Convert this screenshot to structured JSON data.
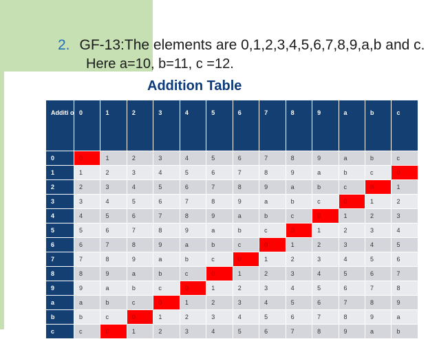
{
  "slide": {
    "point_number": "2.",
    "point_text": "GF-13:The elements are 0,1,2,3,4,5,6,7,8,9,a,b and c.",
    "sub_text": "Here a=10, b=11, c =12.",
    "table_title": "Addition Table"
  },
  "table": {
    "corner": "Additi on",
    "columns": [
      "0",
      "1",
      "2",
      "3",
      "4",
      "5",
      "6",
      "7",
      "8",
      "9",
      "a",
      "b",
      "c"
    ],
    "rows": [
      {
        "label": "0",
        "cells": [
          "0",
          "1",
          "2",
          "3",
          "4",
          "5",
          "6",
          "7",
          "8",
          "9",
          "a",
          "b",
          "c"
        ]
      },
      {
        "label": "1",
        "cells": [
          "1",
          "2",
          "3",
          "4",
          "5",
          "6",
          "7",
          "8",
          "9",
          "a",
          "b",
          "c",
          "0"
        ]
      },
      {
        "label": "2",
        "cells": [
          "2",
          "3",
          "4",
          "5",
          "6",
          "7",
          "8",
          "9",
          "a",
          "b",
          "c",
          "0",
          "1"
        ]
      },
      {
        "label": "3",
        "cells": [
          "3",
          "4",
          "5",
          "6",
          "7",
          "8",
          "9",
          "a",
          "b",
          "c",
          "0",
          "1",
          "2"
        ]
      },
      {
        "label": "4",
        "cells": [
          "4",
          "5",
          "6",
          "7",
          "8",
          "9",
          "a",
          "b",
          "c",
          "0",
          "1",
          "2",
          "3"
        ]
      },
      {
        "label": "5",
        "cells": [
          "5",
          "6",
          "7",
          "8",
          "9",
          "a",
          "b",
          "c",
          "0",
          "1",
          "2",
          "3",
          "4"
        ]
      },
      {
        "label": "6",
        "cells": [
          "6",
          "7",
          "8",
          "9",
          "a",
          "b",
          "c",
          "0",
          "1",
          "2",
          "3",
          "4",
          "5"
        ]
      },
      {
        "label": "7",
        "cells": [
          "7",
          "8",
          "9",
          "a",
          "b",
          "c",
          "0",
          "1",
          "2",
          "3",
          "4",
          "5",
          "6"
        ]
      },
      {
        "label": "8",
        "cells": [
          "8",
          "9",
          "a",
          "b",
          "c",
          "0",
          "1",
          "2",
          "3",
          "4",
          "5",
          "6",
          "7"
        ]
      },
      {
        "label": "9",
        "cells": [
          "9",
          "a",
          "b",
          "c",
          "0",
          "1",
          "2",
          "3",
          "4",
          "5",
          "6",
          "7",
          "8"
        ]
      },
      {
        "label": "a",
        "cells": [
          "a",
          "b",
          "c",
          "0",
          "1",
          "2",
          "3",
          "4",
          "5",
          "6",
          "7",
          "8",
          "9"
        ]
      },
      {
        "label": "b",
        "cells": [
          "b",
          "c",
          "0",
          "1",
          "2",
          "3",
          "4",
          "5",
          "6",
          "7",
          "8",
          "9",
          "a"
        ]
      },
      {
        "label": "c",
        "cells": [
          "c",
          "0",
          "1",
          "2",
          "3",
          "4",
          "5",
          "6",
          "7",
          "8",
          "9",
          "a",
          "b"
        ]
      }
    ]
  },
  "colors": {
    "header_bg": "#143f73",
    "zero_highlight": "#ff0000",
    "accent": "#c6e0b4"
  }
}
